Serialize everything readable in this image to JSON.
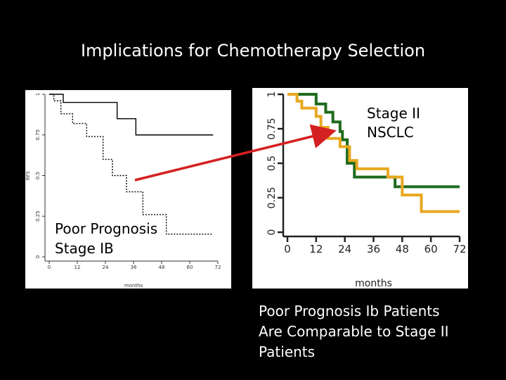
{
  "slide": {
    "title": "Implications for Chemotherapy Selection",
    "annotation_left": [
      "Poor Prognosis",
      "Stage IB"
    ],
    "annotation_right": [
      "Stage II",
      "NSCLC"
    ],
    "conclusion": [
      "Poor Prognosis Ib Patients",
      "Are Comparable to Stage II",
      "Patients"
    ],
    "arrow_color": "#d42020"
  },
  "chart_data": [
    {
      "type": "line",
      "xlabel": "months",
      "ylabel": "RFS",
      "xlim": [
        0,
        72
      ],
      "ylim": [
        0,
        1
      ],
      "x_ticks": [
        "0",
        "12",
        "24",
        "36",
        "48",
        "60",
        "72"
      ],
      "y_ticks": [
        "0",
        "0.25",
        "0.5",
        "0.75",
        "1"
      ],
      "series": [
        {
          "color": "#000000",
          "style": "solid",
          "x": [
            0,
            6,
            6,
            29,
            29,
            37,
            37,
            70
          ],
          "y": [
            1,
            1,
            0.95,
            0.95,
            0.85,
            0.85,
            0.75,
            0.75
          ]
        },
        {
          "color": "#000000",
          "style": "dotted",
          "x": [
            0,
            2,
            2,
            5,
            5,
            10,
            10,
            16,
            16,
            23,
            23,
            27,
            27,
            33,
            33,
            40,
            40,
            50,
            50,
            70
          ],
          "y": [
            1,
            1,
            0.96,
            0.96,
            0.88,
            0.88,
            0.82,
            0.82,
            0.74,
            0.74,
            0.6,
            0.6,
            0.5,
            0.5,
            0.4,
            0.4,
            0.26,
            0.26,
            0.14,
            0.14
          ]
        }
      ]
    },
    {
      "type": "line",
      "xlabel": "months",
      "xlim": [
        0,
        72
      ],
      "ylim": [
        0,
        1
      ],
      "x_ticks": [
        "0",
        "12",
        "24",
        "36",
        "48",
        "60",
        "72"
      ],
      "y_ticks": [
        "0",
        "0.25",
        "0.5",
        "0.75",
        "1"
      ],
      "series": [
        {
          "color": "#1f6b1f",
          "x": [
            0,
            12,
            12,
            16,
            16,
            19,
            19,
            22,
            22,
            23,
            23,
            25,
            25,
            28,
            28,
            45,
            45,
            48,
            48,
            50,
            50,
            72
          ],
          "y": [
            1,
            1,
            0.93,
            0.93,
            0.87,
            0.87,
            0.8,
            0.8,
            0.73,
            0.73,
            0.67,
            0.67,
            0.5,
            0.5,
            0.4,
            0.4,
            0.33,
            0.33,
            0.33,
            0.33,
            0.33,
            0.33
          ]
        },
        {
          "color": "#e8a820",
          "x": [
            0,
            4,
            4,
            6,
            6,
            12,
            12,
            14,
            14,
            17,
            17,
            22,
            22,
            26,
            26,
            29,
            29,
            42,
            42,
            48,
            48,
            56,
            56,
            64,
            64,
            72
          ],
          "y": [
            1,
            1,
            0.95,
            0.95,
            0.9,
            0.9,
            0.84,
            0.84,
            0.76,
            0.76,
            0.68,
            0.68,
            0.62,
            0.62,
            0.52,
            0.52,
            0.46,
            0.46,
            0.4,
            0.4,
            0.27,
            0.27,
            0.15,
            0.15,
            0.15,
            0.15
          ]
        }
      ]
    }
  ]
}
